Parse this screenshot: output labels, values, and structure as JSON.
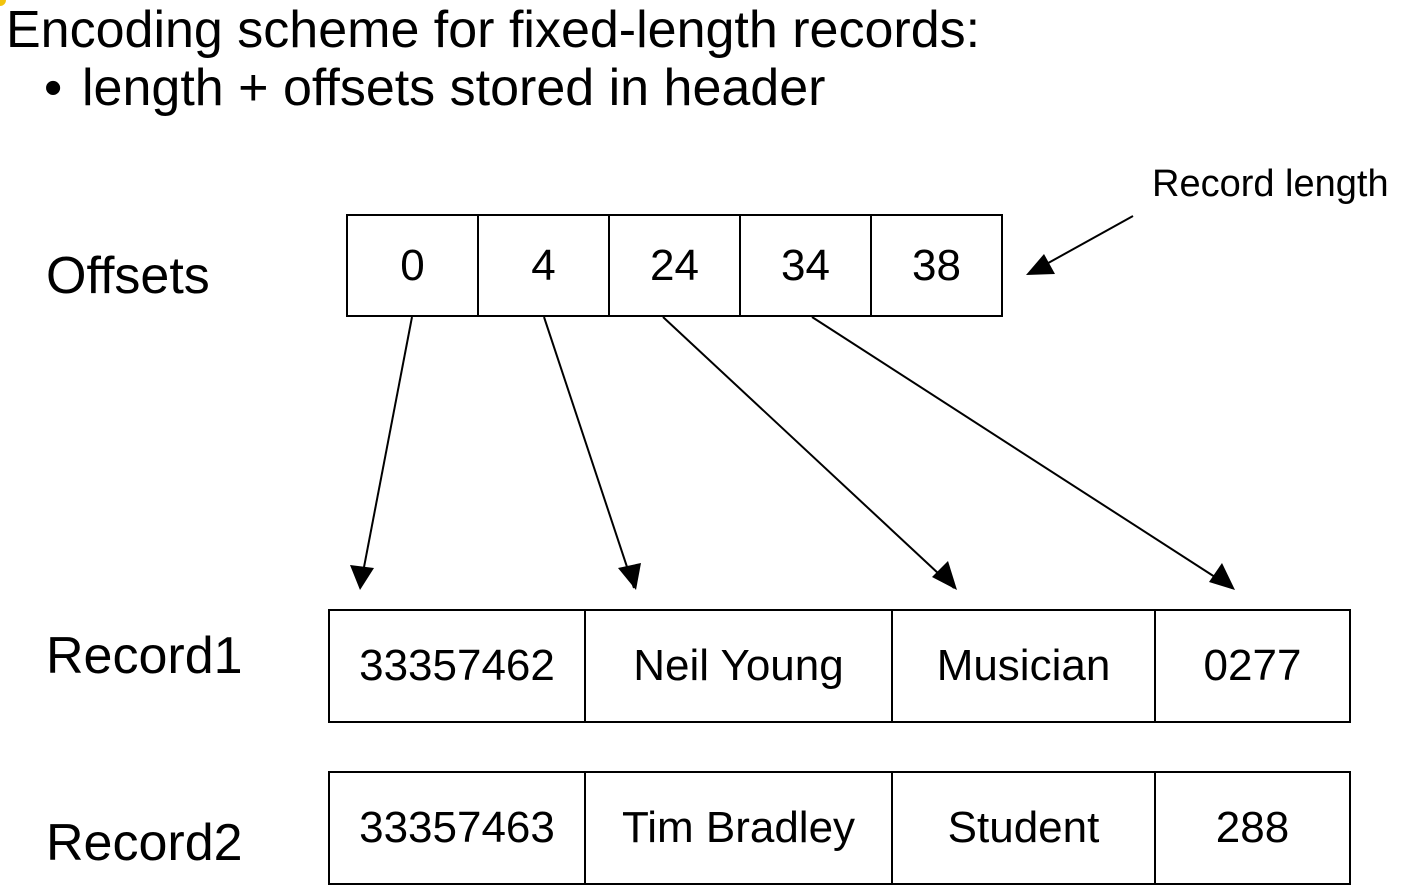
{
  "title": "Encoding scheme for fixed-length records:",
  "bullet": {
    "marker": "•",
    "text": "length + offsets stored in header"
  },
  "offsets": {
    "label": "Offsets",
    "values": [
      "0",
      "4",
      "24",
      "34",
      "38"
    ]
  },
  "annotation": "Record length",
  "records": [
    {
      "label": "Record1",
      "values": [
        "33357462",
        "Neil Young",
        "Musician",
        "0277"
      ]
    },
    {
      "label": "Record2",
      "values": [
        "33357463",
        "Tim Bradley",
        "Student",
        "288"
      ]
    }
  ]
}
